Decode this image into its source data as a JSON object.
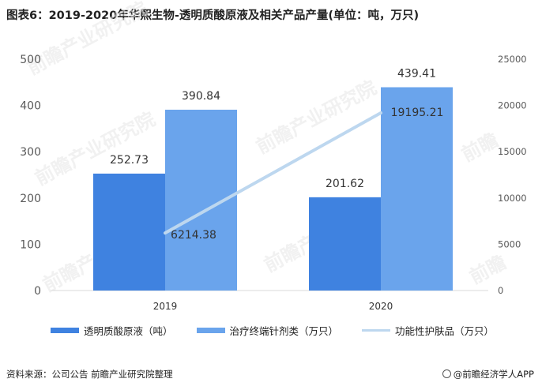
{
  "header": {
    "title": "图表6：2019-2020年华熙生物-透明质酸原液及相关产品产量(单位：吨，万只)"
  },
  "footer": {
    "source": "资料来源：公司公告 前瞻产业研究院整理",
    "brand": "@前瞻经济学人APP"
  },
  "colors": {
    "series1": "#3f82e0",
    "series2": "#6aa4ec",
    "series3": "#bdd7ef",
    "axis_text": "#595959"
  },
  "chart_data": {
    "type": "bar",
    "categories": [
      "2019",
      "2020"
    ],
    "series": [
      {
        "name": "透明质酸原液（吨）",
        "type": "bar",
        "axis": "left",
        "values": [
          252.73,
          201.62
        ],
        "labels": [
          "252.73",
          "201.62"
        ]
      },
      {
        "name": "治疗终端针剂类（万只）",
        "type": "bar",
        "axis": "left",
        "values": [
          390.84,
          439.41
        ],
        "labels": [
          "390.84",
          "439.41"
        ]
      },
      {
        "name": "功能性护肤品（万只）",
        "type": "line",
        "axis": "right",
        "values": [
          6214.38,
          19195.21
        ],
        "labels": [
          "6214.38",
          "19195.21"
        ]
      }
    ],
    "ylim_left": [
      0,
      500
    ],
    "ylim_right": [
      0,
      25000
    ],
    "yticks_left": [
      "0",
      "100",
      "200",
      "300",
      "400",
      "500"
    ],
    "yticks_right": [
      "0",
      "5000",
      "10000",
      "15000",
      "20000",
      "25000"
    ],
    "legend_position": "bottom",
    "grid": false
  }
}
